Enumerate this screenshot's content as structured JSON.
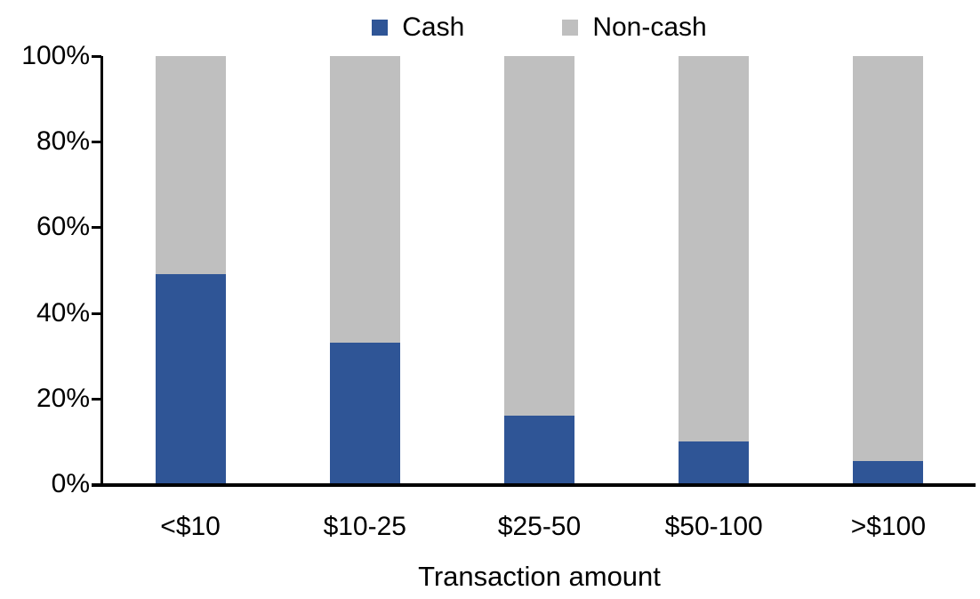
{
  "chart_data": {
    "type": "bar",
    "variant": "stacked-100-percent",
    "title": "",
    "xlabel": "Transaction amount",
    "ylabel": "",
    "categories": [
      "<$10",
      "$10-25",
      "$25-50",
      "$50-100",
      ">$100"
    ],
    "series": [
      {
        "name": "Cash",
        "color": "#2F5596",
        "values": [
          49,
          33,
          16,
          10,
          5.5
        ]
      },
      {
        "name": "Non-cash",
        "color": "#BFBFBF",
        "values": [
          51,
          67,
          84,
          90,
          94.5
        ]
      }
    ],
    "ylim": [
      0,
      100
    ],
    "ytick_values": [
      0,
      20,
      40,
      60,
      80,
      100
    ],
    "yticks": [
      "0%",
      "20%",
      "40%",
      "60%",
      "80%",
      "100%"
    ],
    "grid": false,
    "legend_position": "top",
    "axis_color": "#000000",
    "text_color": "#000000",
    "background": "#FFFFFF"
  }
}
